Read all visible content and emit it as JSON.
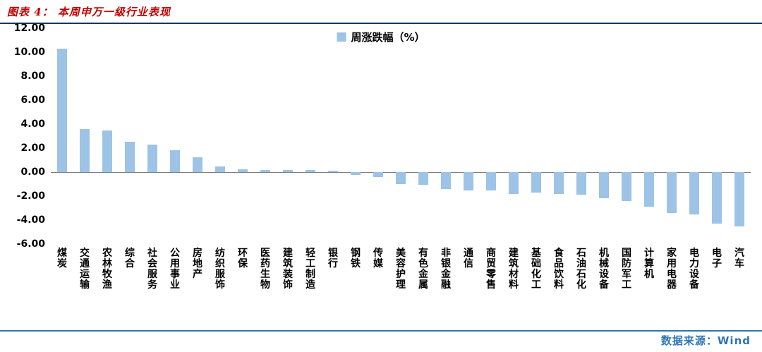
{
  "header": {
    "title": "图表 4： 本周申万一级行业表现"
  },
  "chart_data": {
    "type": "bar",
    "title": "本周申万一级行业表现",
    "legend": "周涨跌幅（%）",
    "legend_position": "top-center",
    "grid": false,
    "bar_color": "#9DC3E6",
    "zero_line_color": "#7f7f7f",
    "ylim": [
      -6,
      12
    ],
    "yticks": [
      12,
      10,
      8,
      6,
      4,
      2,
      0,
      -2,
      -4,
      -6
    ],
    "ytick_labels": [
      "12.00",
      "10.00",
      "8.00",
      "6.00",
      "4.00",
      "2.00",
      "0.00",
      "-2.00",
      "-4.00",
      "-6.00"
    ],
    "categories": [
      "煤炭",
      "交通运输",
      "农林牧渔",
      "综合",
      "社会服务",
      "公用事业",
      "房地产",
      "纺织服饰",
      "环保",
      "医药生物",
      "建筑装饰",
      "轻工制造",
      "银行",
      "钢铁",
      "传媒",
      "美容护理",
      "有色金属",
      "非银金融",
      "通信",
      "商贸零售",
      "建筑材料",
      "基础化工",
      "食品饮料",
      "石油石化",
      "机械设备",
      "国防军工",
      "计算机",
      "家用电器",
      "电力设备",
      "电子",
      "汽车"
    ],
    "values": [
      10.3,
      3.6,
      3.5,
      2.55,
      2.3,
      1.85,
      1.25,
      0.45,
      0.25,
      0.2,
      0.2,
      0.15,
      0.1,
      -0.25,
      -0.4,
      -1.0,
      -1.05,
      -1.4,
      -1.55,
      -1.5,
      -1.8,
      -1.7,
      -1.8,
      -1.9,
      -2.2,
      -2.4,
      -2.9,
      -3.4,
      -3.5,
      -4.3,
      -4.5
    ]
  },
  "footer": {
    "source": "数据来源：Wind"
  }
}
